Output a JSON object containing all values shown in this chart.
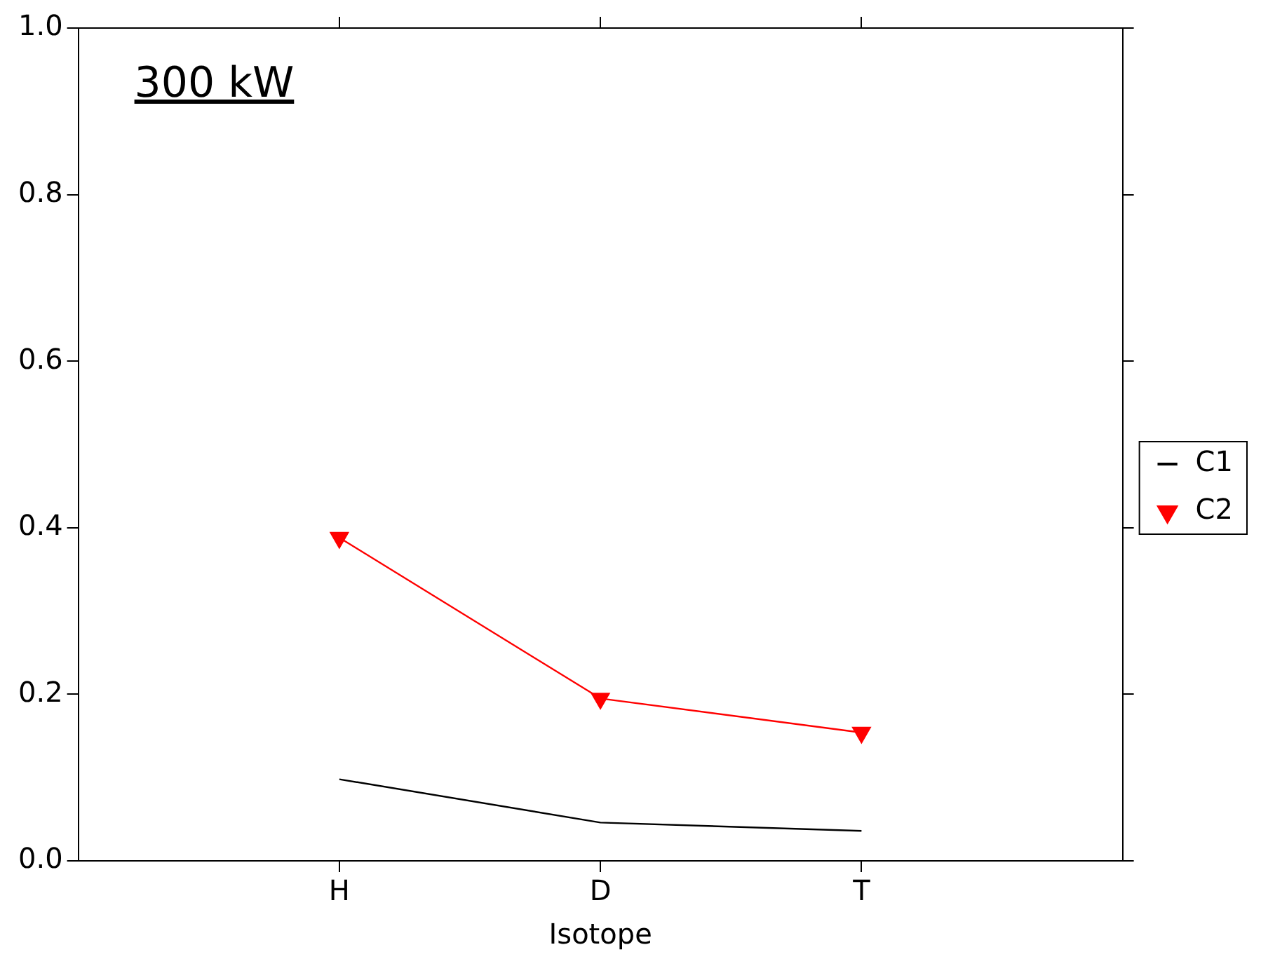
{
  "chart_data": {
    "type": "line",
    "title": "300 kW",
    "xlabel": "Isotope",
    "categories": [
      "H",
      "D",
      "T"
    ],
    "series": [
      {
        "name": "C1",
        "color": "#000000",
        "values": [
          0.098,
          0.046,
          0.036
        ],
        "marker": "none"
      },
      {
        "name": "C2",
        "color": "#ff0000",
        "values": [
          0.388,
          0.195,
          0.154
        ],
        "marker": "triangle"
      }
    ],
    "ylim": [
      0,
      1
    ],
    "yticks": [
      {
        "value": 0,
        "label": "0.0"
      },
      0.2,
      0.4,
      0.6,
      0.8,
      {
        "value": 1,
        "label": "1.0"
      }
    ],
    "grid": false,
    "legend": "right"
  }
}
